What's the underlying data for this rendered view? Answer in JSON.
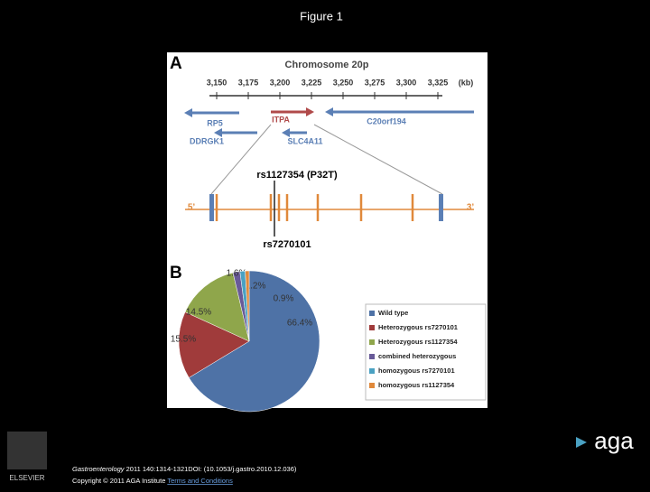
{
  "header": {
    "title": "Figure 1"
  },
  "panel_a": {
    "label": "A",
    "title": "Chromosome 20p",
    "ticks": [
      "3,150",
      "3,175",
      "3,200",
      "3,225",
      "3,250",
      "3,275",
      "3,300",
      "3,325"
    ],
    "unit": "(kb)",
    "genes": [
      "RP5",
      "ITPA",
      "C20orf194",
      "DDRGK1",
      "SLC4A11"
    ],
    "five_prime": "5’",
    "three_prime": "3’",
    "snp_top": "rs1127354 (P32T)",
    "snp_bottom": "rs7270101"
  },
  "chart_data": {
    "type": "pie",
    "panel_label": "B",
    "categories": [
      "Wild type",
      "Heterozygous rs7270101",
      "Heterozygous rs1127354",
      "combined heterozygous",
      "homozygous rs7270101",
      "homozygous rs1127354"
    ],
    "values": [
      66.4,
      15.5,
      14.5,
      1.6,
      1.2,
      0.9
    ],
    "value_labels": [
      "66.4%",
      "15.5%",
      "14.5%",
      "1.6%",
      "1.2%",
      "0.9%"
    ],
    "colors": [
      "#4e72a6",
      "#a03b3b",
      "#8fa64b",
      "#685a98",
      "#4aa1c2",
      "#e0893b"
    ],
    "legend": "right"
  },
  "footer": {
    "journal": "Gastroenterology",
    "citation": " 2011 140:1314-1321DOI: (10.1053/j.gastro.2010.12.036)",
    "copyright": "Copyright © 2011 AGA Institute ",
    "link": "Terms and Conditions"
  },
  "logos": {
    "publisher": "ELSEVIER",
    "society": "aga"
  }
}
